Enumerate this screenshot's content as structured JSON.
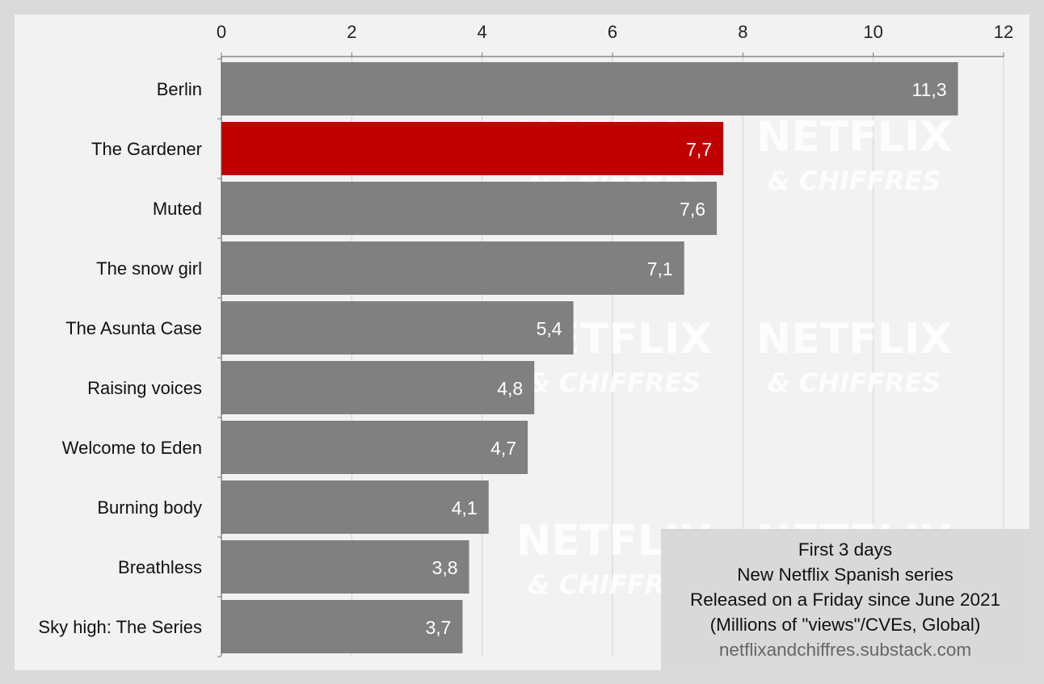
{
  "colors": {
    "default_bar": "#808080",
    "highlight_bar": "#c00000",
    "background": "#f2f2f2",
    "frame": "#dadada"
  },
  "watermark": {
    "line1": "NETFLIX",
    "line2": "& CHIFFRES"
  },
  "info_box": {
    "line1": "First 3 days",
    "line2": "New Netflix Spanish series",
    "line3": "Released on a Friday since June 2021",
    "line4": "(Millions of \"views\"/CVEs, Global)",
    "source": "netflixandchiffres.substack.com"
  },
  "chart_data": {
    "type": "bar",
    "orientation": "horizontal",
    "x_axis_position": "top",
    "xlim": [
      0,
      12
    ],
    "xticks": [
      0,
      2,
      4,
      6,
      8,
      10,
      12
    ],
    "grid": true,
    "decimal_separator": ",",
    "categories": [
      "Berlin",
      "The Gardener",
      "Muted",
      "The snow girl",
      "The Asunta Case",
      "Raising voices",
      "Welcome to Eden",
      "Burning body",
      "Breathless",
      "Sky high: The Series"
    ],
    "values": [
      11.3,
      7.7,
      7.6,
      7.1,
      5.4,
      4.8,
      4.7,
      4.1,
      3.8,
      3.7
    ],
    "value_labels": [
      "11,3",
      "7,7",
      "7,6",
      "7,1",
      "5,4",
      "4,8",
      "4,7",
      "4,1",
      "3,8",
      "3,7"
    ],
    "highlighted": "The Gardener"
  }
}
